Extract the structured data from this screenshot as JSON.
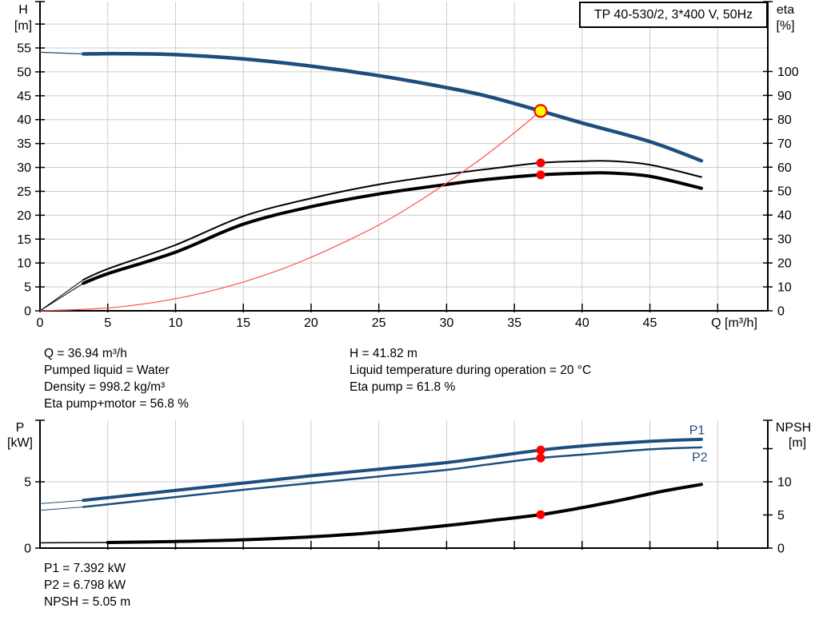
{
  "title_box": {
    "label": "TP 40-530/2, 3*400 V, 50Hz"
  },
  "info_blocks": {
    "operating_left": [
      "Q = 36.94 m³/h",
      "Pumped liquid = Water",
      "Density = 998.2 kg/m³",
      "Eta pump+motor = 56.8 %"
    ],
    "operating_right": [
      "H = 41.82 m",
      "Liquid temperature during operation = 20 °C",
      "Eta pump = 61.8 %"
    ],
    "power_block": [
      "P1 = 7.392 kW",
      "P2 = 6.798 kW",
      "NPSH = 5.05 m"
    ]
  },
  "colors": {
    "blue": "#1d4e7e",
    "black": "#000000",
    "red": "#ff4f4f",
    "dot_red": "#ff0000",
    "duty_yellow": "#ffff00",
    "grid": "#cccccc",
    "axis": "#000000"
  },
  "chart_data": [
    {
      "type": "line",
      "name": "qh-eta-chart",
      "title": "TP 40-530/2, 3*400 V, 50Hz",
      "xlabel": "Q [m³/h]",
      "xlim": [
        0,
        53.7
      ],
      "x_ticks": [
        0,
        5,
        10,
        15,
        20,
        25,
        30,
        35,
        40,
        45
      ],
      "x_extra_ticks": [
        50
      ],
      "x_grid": [
        5,
        10,
        15,
        20,
        25,
        30,
        35,
        40,
        45,
        50
      ],
      "left_axis": {
        "title": "H",
        "unit": "[m]",
        "lim": [
          0,
          64.7
        ],
        "ticks": [
          0,
          5,
          10,
          15,
          20,
          25,
          30,
          35,
          40,
          45,
          50,
          55
        ],
        "extra_ticks": [
          60
        ],
        "grid": [
          5,
          10,
          15,
          20,
          25,
          30,
          35,
          40,
          45,
          50,
          55,
          60
        ]
      },
      "right_axis": {
        "title": "eta",
        "unit": "[%]",
        "lim": [
          0,
          129.2
        ],
        "ticks": [
          0,
          10,
          20,
          30,
          40,
          50,
          60,
          70,
          80,
          90,
          100
        ],
        "extra_ticks": []
      },
      "series": [
        {
          "name": "eta-pump-curve",
          "axis": "right",
          "color": "black",
          "width": 2,
          "thin_width": 1,
          "thin_until": 3.2,
          "points": [
            [
              0,
              0
            ],
            [
              3.2,
              13
            ],
            [
              5,
              17.5
            ],
            [
              10,
              27.5
            ],
            [
              15,
              39.5
            ],
            [
              20,
              47
            ],
            [
              25,
              52.8
            ],
            [
              30,
              57
            ],
            [
              33,
              59.2
            ],
            [
              36.94,
              61.8
            ],
            [
              40,
              62.5
            ],
            [
              42,
              62.6
            ],
            [
              45,
              61
            ],
            [
              48.8,
              55.9
            ]
          ]
        },
        {
          "name": "eta-pump-motor-curve",
          "axis": "right",
          "color": "black",
          "width": 4,
          "thin_width": 1,
          "thin_until": 3.2,
          "points": [
            [
              0,
              0
            ],
            [
              3.2,
              11.5
            ],
            [
              5,
              15.5
            ],
            [
              10,
              24.5
            ],
            [
              15,
              36.2
            ],
            [
              20,
              43.5
            ],
            [
              25,
              48.8
            ],
            [
              30,
              52.8
            ],
            [
              33,
              54.9
            ],
            [
              36.94,
              56.8
            ],
            [
              40,
              57.5
            ],
            [
              42,
              57.6
            ],
            [
              45,
              56.2
            ],
            [
              48.8,
              51.2
            ]
          ]
        },
        {
          "name": "system-curve",
          "axis": "left",
          "color": "red",
          "width": 1.2,
          "thin_width": 1.2,
          "points": [
            [
              0,
              0
            ],
            [
              6,
              0.85
            ],
            [
              12,
              3.73
            ],
            [
              18,
              8.9
            ],
            [
              24,
              16.5
            ],
            [
              28,
              23.0
            ],
            [
              32,
              30.7
            ],
            [
              34.5,
              36.1
            ],
            [
              36.94,
              41.82
            ]
          ]
        },
        {
          "name": "head-curve",
          "axis": "left",
          "color": "blue",
          "width": 4.5,
          "thin_width": 1.2,
          "thin_until": 3.2,
          "points": [
            [
              0,
              54.1
            ],
            [
              3.2,
              53.75
            ],
            [
              6,
              53.8
            ],
            [
              10,
              53.6
            ],
            [
              15,
              52.7
            ],
            [
              20,
              51.2
            ],
            [
              25,
              49.2
            ],
            [
              30,
              46.7
            ],
            [
              33,
              44.9
            ],
            [
              36.94,
              41.82
            ],
            [
              40,
              39.3
            ],
            [
              45,
              35.4
            ],
            [
              48.8,
              31.4
            ]
          ]
        }
      ],
      "markers": [
        {
          "name": "duty-point",
          "axis": "left",
          "x": 36.94,
          "y": 41.82,
          "style": "duty"
        },
        {
          "name": "eta-pump-point",
          "axis": "right",
          "x": 36.94,
          "y": 61.8,
          "style": "dot"
        },
        {
          "name": "eta-pump-motor-point",
          "axis": "right",
          "x": 36.94,
          "y": 56.8,
          "style": "dot"
        }
      ]
    },
    {
      "type": "line",
      "name": "power-npsh-chart",
      "xlabel": "",
      "xlim": [
        0,
        53.7
      ],
      "x_ticks": [],
      "x_extra_ticks": [
        5,
        10,
        15,
        20,
        25,
        30,
        35,
        40,
        45,
        50
      ],
      "x_grid": [
        5,
        10,
        15,
        20,
        25,
        30,
        35,
        40,
        45,
        50
      ],
      "left_axis": {
        "title": "P",
        "unit": "[kW]",
        "lim": [
          0,
          9.64
        ],
        "ticks": [
          0,
          5
        ],
        "extra_ticks": [],
        "grid": [
          5
        ]
      },
      "right_axis": {
        "title": "NPSH",
        "unit": "[m]",
        "lim": [
          0,
          19.28
        ],
        "ticks": [
          0,
          5,
          10
        ],
        "extra_ticks": [
          15
        ]
      },
      "series": [
        {
          "name": "p1-curve",
          "axis": "left",
          "color": "blue",
          "label": "P1",
          "width": 4,
          "thin_width": 1,
          "thin_until": 3.2,
          "points": [
            [
              0,
              3.35
            ],
            [
              3.2,
              3.6
            ],
            [
              5,
              3.8
            ],
            [
              10,
              4.35
            ],
            [
              15,
              4.9
            ],
            [
              20,
              5.45
            ],
            [
              25,
              5.95
            ],
            [
              30,
              6.45
            ],
            [
              33,
              6.85
            ],
            [
              36.94,
              7.392
            ],
            [
              40,
              7.7
            ],
            [
              45,
              8.05
            ],
            [
              48.8,
              8.2
            ]
          ]
        },
        {
          "name": "p2-curve",
          "axis": "left",
          "color": "blue",
          "label": "P2",
          "width": 2.5,
          "thin_width": 1,
          "thin_until": 3.2,
          "points": [
            [
              0,
              2.85
            ],
            [
              3.2,
              3.1
            ],
            [
              5,
              3.3
            ],
            [
              10,
              3.85
            ],
            [
              15,
              4.4
            ],
            [
              20,
              4.9
            ],
            [
              25,
              5.4
            ],
            [
              30,
              5.9
            ],
            [
              33,
              6.3
            ],
            [
              36.94,
              6.798
            ],
            [
              40,
              7.05
            ],
            [
              45,
              7.45
            ],
            [
              48.8,
              7.6
            ]
          ]
        },
        {
          "name": "npsh-curve",
          "axis": "right",
          "color": "black",
          "width": 4,
          "thin_width": 1.5,
          "thin_until": 3.2,
          "points": [
            [
              0,
              0.8
            ],
            [
              5,
              0.85
            ],
            [
              10,
              1.0
            ],
            [
              15,
              1.25
            ],
            [
              20,
              1.7
            ],
            [
              25,
              2.4
            ],
            [
              30,
              3.4
            ],
            [
              33,
              4.1
            ],
            [
              36.94,
              5.05
            ],
            [
              40,
              6.1
            ],
            [
              43,
              7.3
            ],
            [
              46,
              8.6
            ],
            [
              48.8,
              9.6
            ]
          ]
        }
      ],
      "series_labels": [
        {
          "text": "P1",
          "x": 47.9,
          "y": 8.6,
          "axis": "left"
        },
        {
          "text": "P2",
          "x": 48.1,
          "y": 6.55,
          "axis": "left"
        }
      ],
      "markers": [
        {
          "name": "p1-point",
          "axis": "left",
          "x": 36.94,
          "y": 7.392,
          "style": "dot"
        },
        {
          "name": "p2-point",
          "axis": "left",
          "x": 36.94,
          "y": 6.798,
          "style": "dot"
        },
        {
          "name": "npsh-point",
          "axis": "right",
          "x": 36.94,
          "y": 5.05,
          "style": "dot"
        }
      ]
    }
  ]
}
